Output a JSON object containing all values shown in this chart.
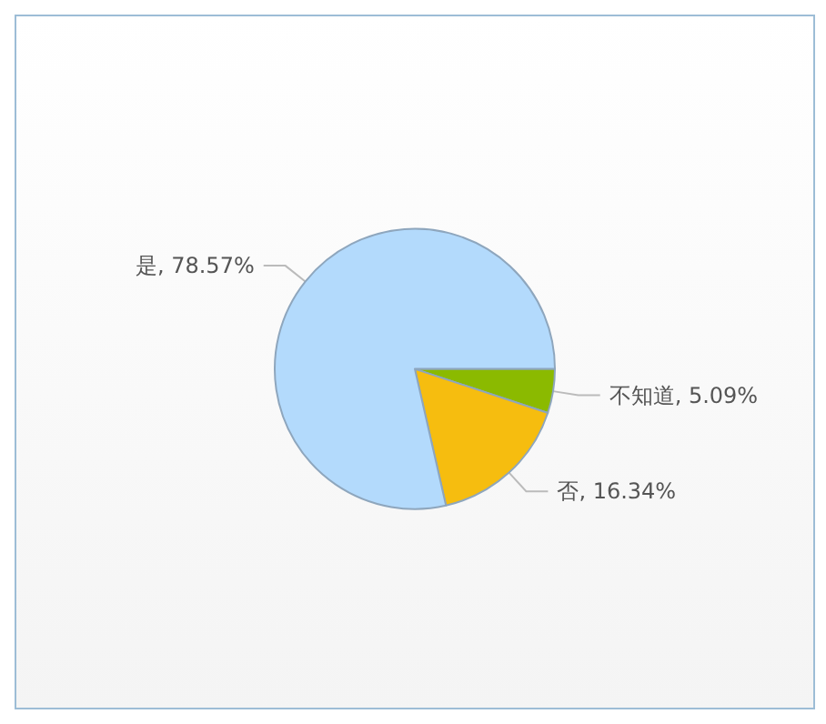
{
  "chart_data": {
    "type": "pie",
    "categories": [
      "不知道",
      "否",
      "是"
    ],
    "values": [
      5.09,
      16.34,
      78.57
    ],
    "colors": [
      "#8bba00",
      "#f6bd0f",
      "#b3dafc"
    ],
    "value_labels": [
      ", 5.09%",
      ", 16.34%",
      ", 78.57%"
    ],
    "legend": false
  }
}
